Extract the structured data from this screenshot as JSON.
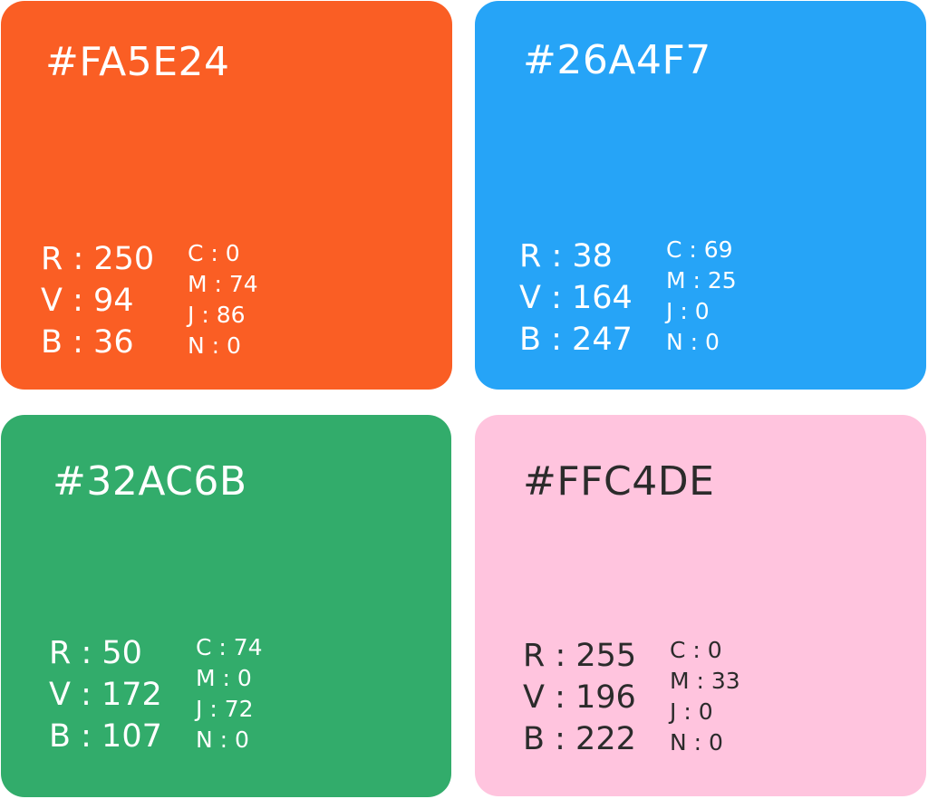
{
  "swatches": [
    {
      "hex": "#FA5E24",
      "bg": "#FA5E24",
      "text_color": "#FFFFFF",
      "rgb": [
        "R : 250",
        "V : 94",
        "B : 36"
      ],
      "cmyk": [
        "C : 0",
        "M : 74",
        "J : 86",
        "N : 0"
      ]
    },
    {
      "hex": "#26A4F7",
      "bg": "#26A4F7",
      "text_color": "#FFFFFF",
      "rgb": [
        "R : 38",
        "V : 164",
        "B : 247"
      ],
      "cmyk": [
        "C : 69",
        "M : 25",
        "J : 0",
        "N : 0"
      ]
    },
    {
      "hex": "#32AC6B",
      "bg": "#32AC6B",
      "text_color": "#FFFFFF",
      "rgb": [
        "R : 50",
        "V : 172",
        "B : 107"
      ],
      "cmyk": [
        "C : 74",
        "M : 0",
        "J : 72",
        "N : 0"
      ]
    },
    {
      "hex": "#FFC4DE",
      "bg": "#FFC4DE",
      "text_color": "#2B2B2B",
      "rgb": [
        "R : 255",
        "V : 196",
        "B : 222"
      ],
      "cmyk": [
        "C : 0",
        "M : 33",
        "J : 0",
        "N : 0"
      ]
    }
  ]
}
